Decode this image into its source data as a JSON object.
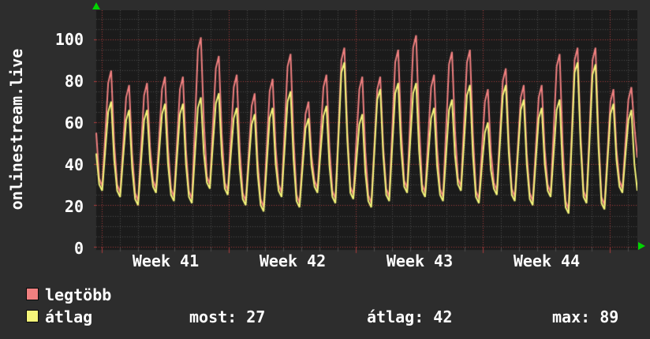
{
  "title_vertical": "onlinestream.live",
  "colors": {
    "page_bg": "#2d2d2d",
    "plot_bg": "#1b1b1b",
    "grid_minor": "#4c4c4c",
    "grid_major": "#aa3c3c",
    "series_max": "#f08080",
    "series_avg": "#f5f57a",
    "text": "#ffffff",
    "axis_arrow": "#00d400"
  },
  "y_axis": {
    "labels": [
      "100",
      "80",
      "60",
      "40",
      "20",
      "0"
    ],
    "values": [
      100,
      80,
      60,
      40,
      20,
      0
    ]
  },
  "x_axis": {
    "labels": [
      "Week 41",
      "Week 42",
      "Week 43",
      "Week 44"
    ]
  },
  "legend": [
    {
      "label": "legtöbb",
      "color": "#f08080"
    },
    {
      "label": "átlag",
      "color": "#f5f57a"
    }
  ],
  "stats": [
    {
      "text": "most: 27"
    },
    {
      "text": "átlag: 42"
    },
    {
      "text": "max: 89"
    }
  ],
  "chart_data": {
    "type": "line",
    "title": "onlinestream.live",
    "xlabel": "",
    "ylabel": "",
    "ylim": [
      0,
      114
    ],
    "y_ticks": [
      0,
      20,
      40,
      60,
      80,
      100
    ],
    "x_tick_labels": [
      "Week 41",
      "Week 42",
      "Week 43",
      "Week 44"
    ],
    "grid": "dotted, minor every 5 (gray), major every 20 (red), vertical per day (gray) and per week (red)",
    "legend_position": "bottom-left",
    "samples_per_day": 6,
    "days_shown": 30,
    "stats": {
      "most": 27,
      "átlag": 42,
      "max": 89
    },
    "series": [
      {
        "name": "legtöbb",
        "color": "#f08080",
        "values": [
          55,
          33,
          29,
          54,
          79,
          85,
          50,
          30,
          26,
          49,
          72,
          78,
          45,
          26,
          22,
          48,
          73,
          79,
          48,
          32,
          28,
          52,
          76,
          82,
          48,
          28,
          24,
          50,
          76,
          82,
          47,
          27,
          23,
          58,
          95,
          101,
          60,
          34,
          30,
          58,
          86,
          92,
          54,
          31,
          27,
          52,
          77,
          83,
          47,
          26,
          22,
          45,
          68,
          74,
          41,
          23,
          19,
          47,
          75,
          81,
          48,
          30,
          26,
          56,
          87,
          93,
          52,
          25,
          21,
          43,
          64,
          70,
          44,
          32,
          28,
          53,
          77,
          83,
          48,
          27,
          23,
          56,
          90,
          96,
          55,
          29,
          25,
          51,
          76,
          82,
          46,
          25,
          21,
          48,
          76,
          82,
          48,
          28,
          24,
          56,
          89,
          95,
          56,
          32,
          28,
          61,
          96,
          102,
          59,
          30,
          26,
          52,
          77,
          83,
          48,
          28,
          24,
          56,
          88,
          94,
          56,
          33,
          29,
          59,
          89,
          95,
          54,
          27,
          23,
          47,
          70,
          76,
          46,
          31,
          27,
          54,
          80,
          86,
          50,
          28,
          24,
          48,
          72,
          78,
          45,
          26,
          22,
          47,
          72,
          78,
          47,
          30,
          26,
          56,
          87,
          93,
          50,
          22,
          18,
          53,
          90,
          96,
          54,
          27,
          23,
          56,
          90,
          96,
          53,
          24,
          20,
          45,
          70,
          76,
          47,
          32,
          28,
          50,
          71,
          77,
          58,
          43
        ]
      },
      {
        "name": "átlag",
        "color": "#f5f57a",
        "values": [
          45,
          30,
          27,
          46,
          65,
          70,
          42,
          27,
          24,
          43,
          61,
          66,
          38,
          23,
          20,
          41,
          61,
          66,
          41,
          29,
          26,
          45,
          64,
          69,
          40,
          25,
          22,
          43,
          64,
          69,
          40,
          24,
          21,
          44,
          67,
          72,
          45,
          31,
          28,
          49,
          69,
          74,
          44,
          28,
          25,
          44,
          62,
          67,
          38,
          23,
          20,
          40,
          59,
          64,
          35,
          20,
          17,
          39,
          62,
          67,
          40,
          27,
          24,
          47,
          70,
          75,
          42,
          22,
          19,
          38,
          57,
          62,
          39,
          29,
          26,
          45,
          63,
          68,
          39,
          24,
          21,
          52,
          84,
          89,
          51,
          26,
          23,
          41,
          59,
          64,
          36,
          22,
          19,
          45,
          71,
          76,
          44,
          25,
          22,
          48,
          74,
          79,
          47,
          29,
          26,
          50,
          74,
          79,
          46,
          27,
          24,
          43,
          62,
          67,
          39,
          25,
          22,
          44,
          66,
          71,
          44,
          30,
          27,
          50,
          73,
          78,
          44,
          24,
          21,
          39,
          55,
          60,
          37,
          28,
          25,
          49,
          73,
          78,
          45,
          25,
          22,
          44,
          66,
          71,
          40,
          23,
          20,
          41,
          62,
          67,
          40,
          27,
          24,
          45,
          66,
          71,
          38,
          19,
          16,
          49,
          84,
          89,
          50,
          24,
          21,
          51,
          83,
          88,
          48,
          21,
          18,
          41,
          64,
          69,
          42,
          29,
          26,
          44,
          61,
          66,
          40,
          27
        ]
      }
    ]
  }
}
